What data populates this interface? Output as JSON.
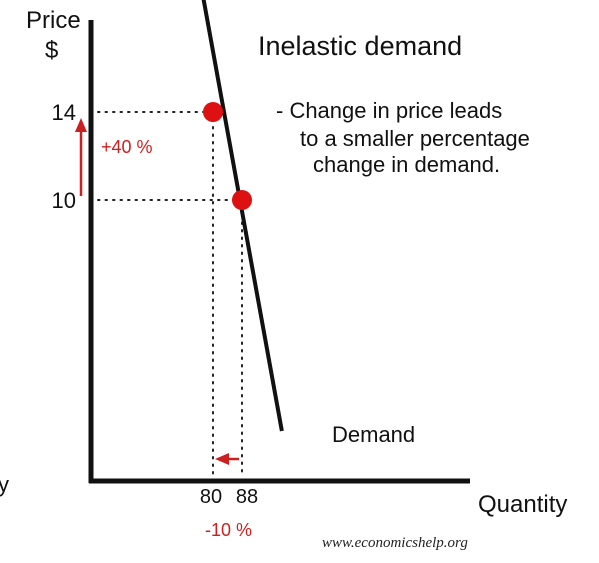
{
  "chart_data": {
    "type": "line",
    "title": "Inelastic demand",
    "annotation_lines": [
      "- Change in price leads",
      "to a smaller percentage",
      "change in demand."
    ],
    "ylabel_line1": "Price",
    "ylabel_line2": "$",
    "xlabel": "Quantity",
    "edge_fragment": "y",
    "series": [
      {
        "name": "Demand",
        "line": [
          [
            75,
            21.3
          ],
          [
            99,
            -0.5
          ]
        ]
      }
    ],
    "points": [
      {
        "x": 80,
        "y": 14
      },
      {
        "x": 88,
        "y": 10
      }
    ],
    "y_ticks": [
      {
        "value": 14,
        "label": "14"
      },
      {
        "value": 10,
        "label": "10"
      }
    ],
    "x_ticks": [
      {
        "value": 80,
        "label": "80"
      },
      {
        "value": 88,
        "label": "88"
      }
    ],
    "price_change_label": "+40 %",
    "quantity_change_label": "-10 %",
    "watermark": "www.economicshelp.org",
    "colors": {
      "line": "#111111",
      "points": "#dd1111",
      "accent": "#cc1f1f",
      "guides": "#222222"
    }
  }
}
